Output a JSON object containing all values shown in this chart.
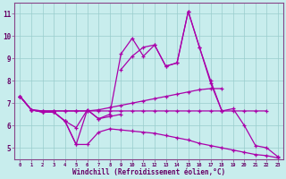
{
  "x": [
    0,
    1,
    2,
    3,
    4,
    5,
    6,
    7,
    8,
    9,
    10,
    11,
    12,
    13,
    14,
    15,
    16,
    17,
    18,
    19,
    20,
    21,
    22,
    23
  ],
  "line_main": [
    7.3,
    6.7,
    6.6,
    6.6,
    6.2,
    5.9,
    6.7,
    6.3,
    6.5,
    9.2,
    9.9,
    9.1,
    9.6,
    8.65,
    8.8,
    11.1,
    9.5,
    8.0,
    6.65,
    6.75,
    6.0,
    5.1,
    5.0,
    4.6
  ],
  "line_upper": [
    7.3,
    6.7,
    6.6,
    null,
    null,
    null,
    null,
    null,
    null,
    8.5,
    9.1,
    9.5,
    9.6,
    8.65,
    8.8,
    11.1,
    9.5,
    7.9,
    6.65,
    null,
    null,
    null,
    null,
    null
  ],
  "line_flat_up": [
    7.3,
    6.7,
    6.65,
    6.65,
    6.65,
    6.65,
    6.65,
    6.7,
    6.8,
    6.9,
    7.0,
    7.1,
    7.2,
    7.3,
    7.4,
    7.5,
    7.6,
    7.65,
    7.65,
    null,
    null,
    null,
    null,
    null
  ],
  "line_flat_mid": [
    7.3,
    6.7,
    6.65,
    6.65,
    6.65,
    6.65,
    6.65,
    6.65,
    6.65,
    6.65,
    6.65,
    6.65,
    6.65,
    6.65,
    6.65,
    6.65,
    6.65,
    6.65,
    6.65,
    6.65,
    6.65,
    6.65,
    6.65,
    null
  ],
  "line_lower": [
    7.3,
    6.7,
    6.6,
    6.6,
    6.2,
    5.15,
    5.15,
    5.7,
    5.85,
    5.8,
    5.75,
    5.7,
    5.65,
    5.55,
    5.45,
    5.35,
    5.2,
    5.1,
    5.0,
    4.9,
    4.8,
    4.7,
    4.65,
    4.55
  ],
  "line_zigzag": [
    null,
    null,
    6.6,
    6.6,
    6.2,
    5.15,
    6.7,
    6.3,
    6.4,
    6.5,
    null,
    null,
    null,
    null,
    null,
    null,
    null,
    null,
    null,
    null,
    null,
    null,
    null,
    null
  ],
  "background_color": "#c8eded",
  "line_color": "#aa00aa",
  "grid_color": "#99cccc",
  "spine_color": "#884488",
  "ylim": [
    4.5,
    11.5
  ],
  "yticks": [
    5,
    6,
    7,
    8,
    9,
    10,
    11
  ],
  "xlabel": "Windchill (Refroidissement éolien,°C)",
  "xlabel_color": "#660066",
  "tick_color": "#660066"
}
